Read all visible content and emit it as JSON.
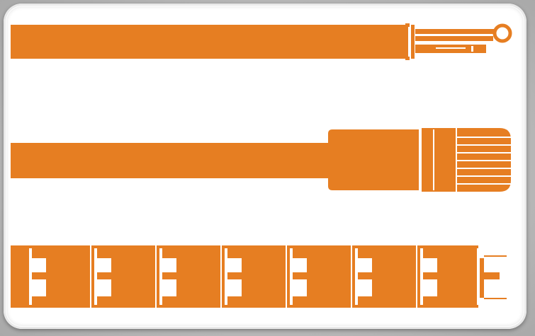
{
  "colors": {
    "background": "#b9b9b9",
    "card": "#ffffff",
    "cable": "#e67e22",
    "cable_dark": "#d8711b",
    "gap": "#ffffff"
  },
  "icons": [
    "ring-terminal-cable-icon",
    "connector-plug-cable-icon",
    "segmented-heating-cable-icon"
  ]
}
